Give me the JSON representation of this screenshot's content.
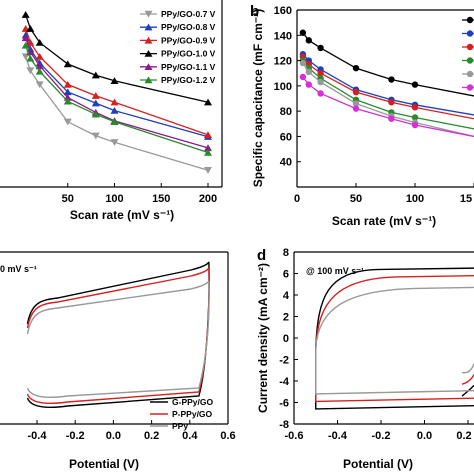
{
  "panels": {
    "a": {
      "xlabel": "Scan rate (mV s⁻¹)",
      "xticks": [
        "50",
        "100",
        "150",
        "200"
      ]
    },
    "b": {
      "label": "b",
      "ylabel": "Specific capacitance (mF cm⁻²)",
      "xlabel": "Scan rate (mV s⁻¹)",
      "xticks": [
        "0",
        "50",
        "100",
        "15"
      ],
      "yticks": [
        "40",
        "60",
        "80",
        "100",
        "120",
        "140",
        "160"
      ]
    },
    "c": {
      "annotation": "0 mV s⁻¹",
      "xlabel": "Potential (V)",
      "xticks": [
        "-0.4",
        "-0.2",
        "0.0",
        "0.2",
        "0.4",
        "0.6"
      ]
    },
    "d": {
      "label": "d",
      "annotation": "@ 100 mV s⁻¹",
      "ylabel": "Current density (mA cm⁻²)",
      "xlabel": "Potential (V)",
      "xticks": [
        "-0.6",
        "-0.4",
        "-0.2",
        "0.0",
        "0.2"
      ],
      "yticks": [
        "-8",
        "-6",
        "-4",
        "-2",
        "0",
        "2",
        "4",
        "6",
        "8"
      ]
    }
  },
  "chart_data": [
    {
      "type": "line",
      "panel": "a",
      "xlabel": "Scan rate (mV s⁻¹)",
      "ylabel": "",
      "xlim": [
        -25,
        210
      ],
      "x": [
        5,
        10,
        20,
        50,
        80,
        100,
        200
      ],
      "legend": "top-right",
      "series": [
        {
          "name": "PPy/GO-0.7 V",
          "color": "#999999",
          "marker": "triangle-down",
          "values": [
            210,
            195,
            180,
            140,
            125,
            118,
            88
          ]
        },
        {
          "name": "PPy/GO-0.8 V",
          "color": "#1f3fbf",
          "marker": "triangle-up",
          "values": [
            233,
            218,
            203,
            172,
            160,
            152,
            124
          ]
        },
        {
          "name": "PPy/GO-0.9 V",
          "color": "#d62020",
          "marker": "triangle-up",
          "values": [
            240,
            225,
            210,
            180,
            168,
            161,
            126
          ]
        },
        {
          "name": "PPy/GO-1.0 V",
          "color": "#000000",
          "marker": "triangle-up",
          "values": [
            255,
            240,
            225,
            202,
            190,
            184,
            161
          ]
        },
        {
          "name": "PPy/GO-1.1 V",
          "color": "#8b1a8b",
          "marker": "triangle-up",
          "values": [
            230,
            215,
            200,
            166,
            150,
            141,
            112
          ]
        },
        {
          "name": "PPy/GO-1.2 V",
          "color": "#2a8a2a",
          "marker": "triangle-up",
          "values": [
            222,
            208,
            194,
            162,
            148,
            140,
            107
          ]
        }
      ]
    },
    {
      "type": "line",
      "panel": "b",
      "xlabel": "Scan rate (mV s⁻¹)",
      "ylabel": "Specific capacitance (mF cm⁻²)",
      "xlim": [
        -5,
        160
      ],
      "ylim": [
        20,
        160
      ],
      "x": [
        5,
        10,
        20,
        50,
        80,
        100,
        160
      ],
      "series": [
        {
          "color": "#000000",
          "values": [
            142,
            136,
            130,
            114,
            105,
            101,
            92
          ]
        },
        {
          "color": "#1f3fbf",
          "values": [
            125,
            120,
            113,
            97,
            89,
            85,
            77
          ]
        },
        {
          "color": "#d62020",
          "values": [
            123,
            117,
            110,
            95,
            87,
            83,
            74
          ]
        },
        {
          "color": "#2a8a2a",
          "values": [
            120,
            114,
            106,
            89,
            79,
            75,
            66
          ]
        },
        {
          "color": "#999999",
          "values": [
            118,
            111,
            103,
            86,
            76,
            71,
            60
          ]
        },
        {
          "color": "#d62fd6",
          "values": [
            107,
            101,
            94,
            82,
            74,
            69,
            60
          ]
        }
      ]
    },
    {
      "type": "line",
      "panel": "c",
      "xlabel": "Potential (V)",
      "ylabel": "",
      "xlim": [
        -0.48,
        0.6
      ],
      "legend": "bottom-right",
      "series": [
        {
          "name": "G-PPy/GO",
          "color": "#000000"
        },
        {
          "name": "P-PPy/GO",
          "color": "#d62020"
        },
        {
          "name": "PPy",
          "color": "#999999"
        }
      ]
    },
    {
      "type": "line",
      "panel": "d",
      "xlabel": "Potential (V)",
      "ylabel": "Current density (mA cm⁻²)",
      "xlim": [
        -0.6,
        0.27
      ],
      "ylim": [
        -8,
        8
      ],
      "series": [
        {
          "color": "#000000"
        },
        {
          "color": "#d62020"
        },
        {
          "color": "#999999"
        }
      ]
    }
  ]
}
